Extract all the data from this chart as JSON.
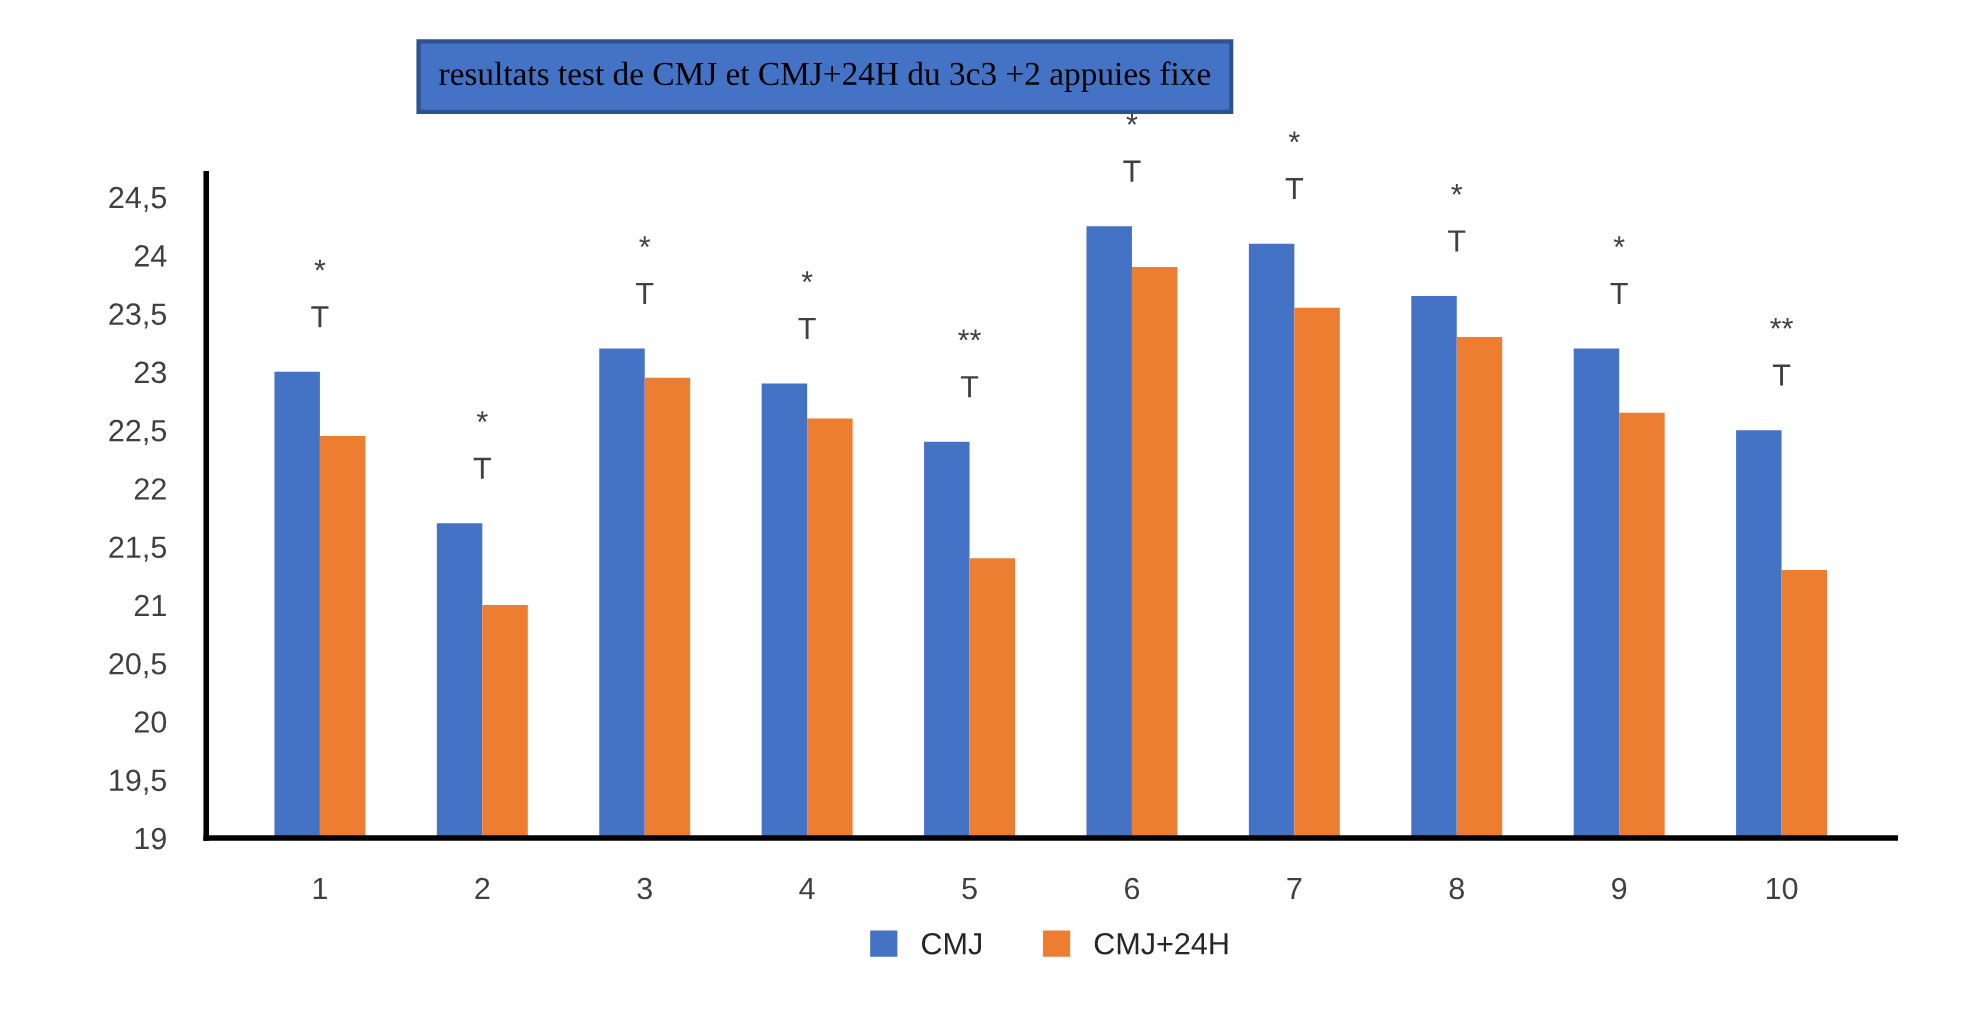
{
  "chart_data": {
    "type": "bar",
    "title": "resultats test de CMJ et CMJ+24H du 3c3 +2 appuies fixe",
    "categories": [
      "1",
      "2",
      "3",
      "4",
      "5",
      "6",
      "7",
      "8",
      "9",
      "10"
    ],
    "series": [
      {
        "name": "CMJ",
        "color": "#4472c4",
        "values": [
          23.0,
          21.7,
          23.2,
          22.9,
          22.4,
          24.25,
          24.1,
          23.65,
          23.2,
          22.5
        ]
      },
      {
        "name": "CMJ+24H",
        "color": "#ed7d31",
        "values": [
          22.45,
          21.0,
          22.95,
          22.6,
          21.4,
          23.9,
          23.55,
          23.3,
          22.65,
          21.3
        ]
      }
    ],
    "ylim": [
      19,
      24.7
    ],
    "yticks": [
      {
        "value": 19,
        "label": "19"
      },
      {
        "value": 19.5,
        "label": "19,5"
      },
      {
        "value": 20,
        "label": "20"
      },
      {
        "value": 20.5,
        "label": "20,5"
      },
      {
        "value": 21,
        "label": "21"
      },
      {
        "value": 21.5,
        "label": "21,5"
      },
      {
        "value": 22,
        "label": "22"
      },
      {
        "value": 22.5,
        "label": "22,5"
      },
      {
        "value": 23,
        "label": "23"
      },
      {
        "value": 23.5,
        "label": "23,5"
      },
      {
        "value": 24,
        "label": "24"
      },
      {
        "value": 24.5,
        "label": "24,5"
      }
    ],
    "grid": false,
    "legend": "bottom",
    "annotations": [
      "*",
      "T",
      "*",
      "T",
      "*",
      "T",
      "*",
      "T",
      "**",
      "T",
      "*",
      "T",
      "*",
      "T",
      "*",
      "T",
      "*",
      "T",
      "**",
      "T"
    ]
  }
}
